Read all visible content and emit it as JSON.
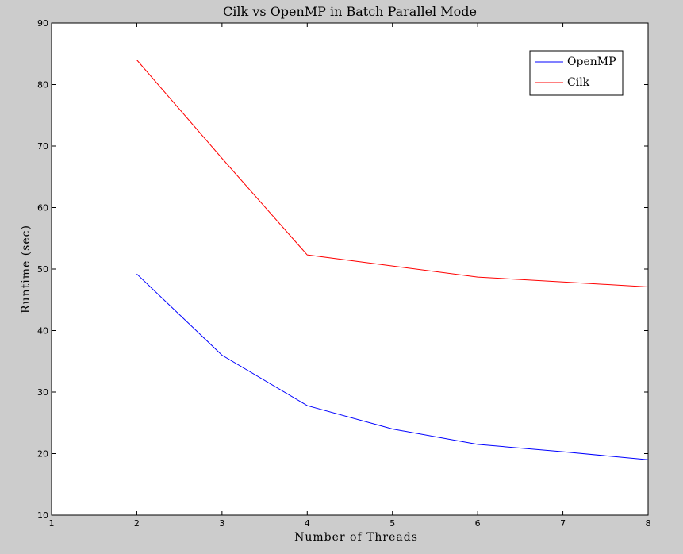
{
  "chart_data": {
    "type": "line",
    "title": "Cilk vs OpenMP in Batch Parallel Mode",
    "xlabel": "Number of Threads",
    "ylabel": "Runtime (sec)",
    "xlim": [
      1,
      8
    ],
    "ylim": [
      10,
      90
    ],
    "xticks": [
      1,
      2,
      3,
      4,
      5,
      6,
      7,
      8
    ],
    "yticks": [
      10,
      20,
      30,
      40,
      50,
      60,
      70,
      80,
      90
    ],
    "grid": false,
    "legend_position": "top-right",
    "series": [
      {
        "name": "OpenMP",
        "color": "#0000ff",
        "x": [
          2,
          3,
          4,
          5,
          6,
          7,
          8
        ],
        "y": [
          49.2,
          36.0,
          27.8,
          24.0,
          21.5,
          20.3,
          19.0
        ]
      },
      {
        "name": "Cilk",
        "color": "#ff0000",
        "x": [
          2,
          3,
          4,
          5,
          6,
          7,
          8
        ],
        "y": [
          84.0,
          68.0,
          52.3,
          50.5,
          48.7,
          47.9,
          47.1
        ]
      }
    ]
  }
}
